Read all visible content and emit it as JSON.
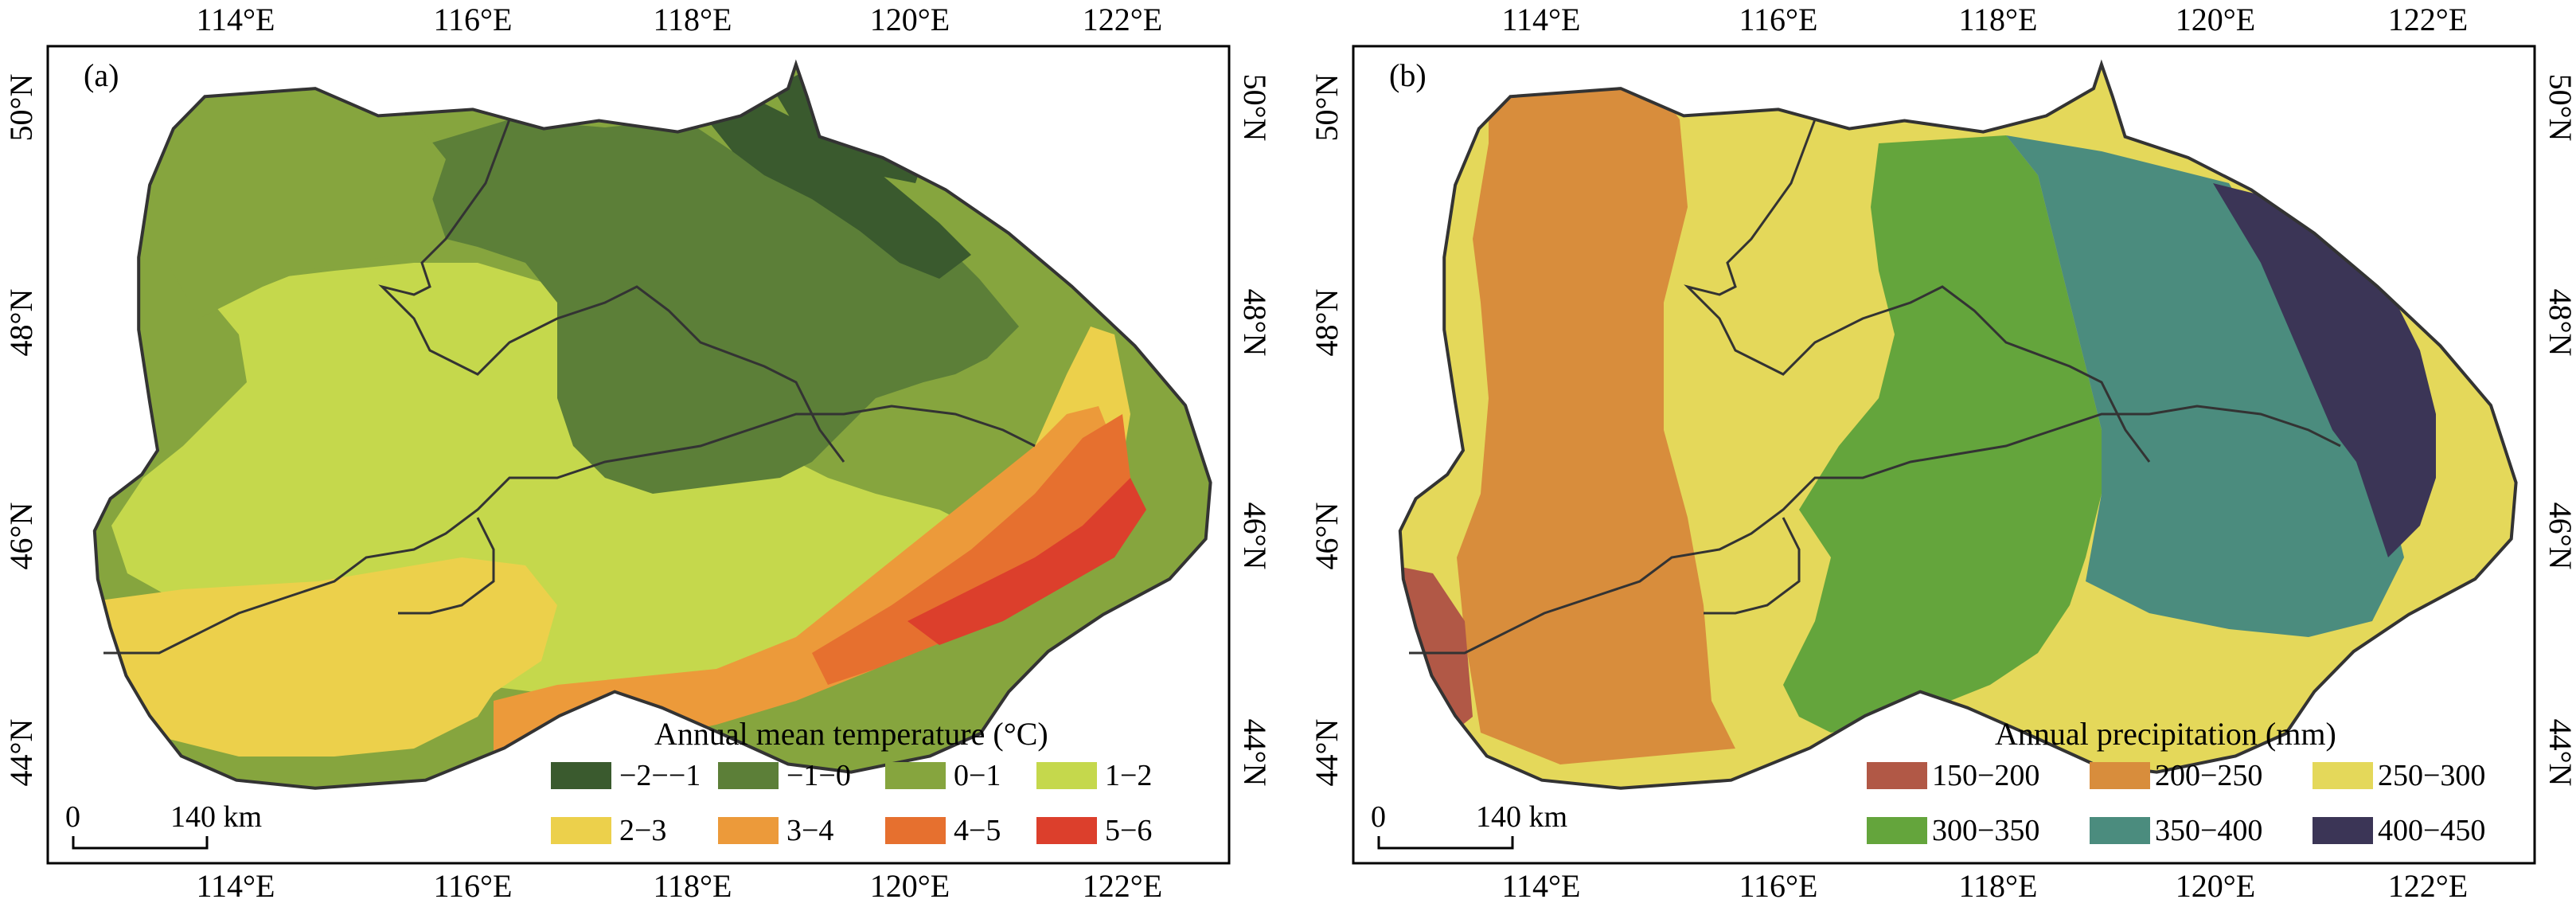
{
  "maps": [
    {
      "panel_label": "(a)",
      "x_ticks": [
        "114°E",
        "116°E",
        "118°E",
        "120°E",
        "122°E"
      ],
      "y_ticks": [
        "50°N",
        "48°N",
        "46°N",
        "44°N"
      ],
      "legend_title": "Annual mean temperature (°C)",
      "legend": [
        {
          "label": "−2−−1",
          "color": "#3a5a2e"
        },
        {
          "label": "−1−0",
          "color": "#5c7f38"
        },
        {
          "label": "0−1",
          "color": "#86a53e"
        },
        {
          "label": "1−2",
          "color": "#c5d84c"
        },
        {
          "label": "2−3",
          "color": "#ecd04b"
        },
        {
          "label": "3−4",
          "color": "#ec9a3a"
        },
        {
          "label": "4−5",
          "color": "#e6702f"
        },
        {
          "label": "5−6",
          "color": "#dc3f2c"
        }
      ],
      "scale_bar": {
        "zero": "0",
        "label": "140 km"
      }
    },
    {
      "panel_label": "(b)",
      "x_ticks": [
        "114°E",
        "116°E",
        "118°E",
        "120°E",
        "122°E"
      ],
      "y_ticks": [
        "50°N",
        "48°N",
        "46°N",
        "44°N"
      ],
      "legend_title": "Annual precipitation (mm)",
      "legend": [
        {
          "label": "150−200",
          "color": "#b15846"
        },
        {
          "label": "200−250",
          "color": "#d88d3c"
        },
        {
          "label": "250−300",
          "color": "#e4d85a"
        },
        {
          "label": "300−350",
          "color": "#64a53c"
        },
        {
          "label": "350−400",
          "color": "#4b8c7e"
        },
        {
          "label": "400−450",
          "color": "#3b3556"
        }
      ],
      "scale_bar": {
        "zero": "0",
        "label": "140 km"
      }
    }
  ]
}
